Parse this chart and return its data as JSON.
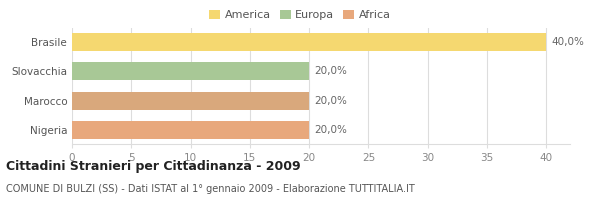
{
  "categories": [
    "Nigeria",
    "Marocco",
    "Slovacchia",
    "Brasile"
  ],
  "values": [
    20,
    20,
    20,
    40
  ],
  "bar_colors": [
    "#e8a87c",
    "#d9a87c",
    "#a8c896",
    "#f5d870"
  ],
  "legend_items": [
    {
      "label": "America",
      "color": "#f5d870"
    },
    {
      "label": "Europa",
      "color": "#a8c896"
    },
    {
      "label": "Africa",
      "color": "#e8a87c"
    }
  ],
  "bar_labels": [
    "20,0%",
    "20,0%",
    "20,0%",
    "40,0%"
  ],
  "xlim": [
    0,
    42
  ],
  "xticks": [
    0,
    5,
    10,
    15,
    20,
    25,
    30,
    35,
    40
  ],
  "title": "Cittadini Stranieri per Cittadinanza - 2009",
  "subtitle": "COMUNE DI BULZI (SS) - Dati ISTAT al 1° gennaio 2009 - Elaborazione TUTTITALIA.IT",
  "background_color": "#ffffff",
  "grid_color": "#dddddd",
  "tick_fontsize": 7.5,
  "title_fontsize": 9,
  "subtitle_fontsize": 7,
  "bar_label_fontsize": 7.5,
  "legend_fontsize": 8,
  "ylabel_fontsize": 8
}
